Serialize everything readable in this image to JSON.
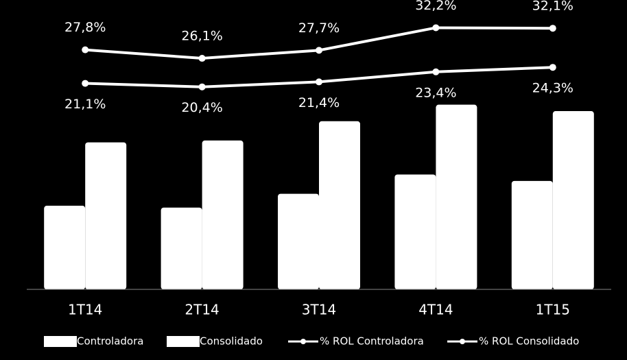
{
  "chart_data": {
    "type": "bar",
    "categories": [
      "1T14",
      "2T14",
      "3T14",
      "4T14",
      "1T15"
    ],
    "series": [
      {
        "name": "Controladora",
        "type": "bar",
        "color": "#ffffff",
        "values": [
          91,
          89,
          104,
          125,
          118
        ]
      },
      {
        "name": "Consolidado",
        "type": "bar",
        "color": "#ffffff",
        "values": [
          160,
          162,
          183,
          201,
          194
        ]
      },
      {
        "name": "% ROL Controladora",
        "type": "line",
        "axis": "y2",
        "color": "#ffffff",
        "values": [
          27.8,
          26.1,
          27.7,
          32.2,
          32.1
        ],
        "value_labels": [
          "27,8%",
          "26,1%",
          "27,7%",
          "32,2%",
          "32,1%"
        ]
      },
      {
        "name": "% ROL Consolidado",
        "type": "line",
        "axis": "y2",
        "color": "#ffffff",
        "values": [
          21.1,
          20.4,
          21.4,
          23.4,
          24.3
        ],
        "value_labels": [
          "21,1%",
          "20,4%",
          "21,4%",
          "23,4%",
          "24,3%"
        ]
      }
    ],
    "ylim": [
      0,
      300
    ],
    "y2lim": [
      -20,
      35
    ],
    "legend": "bottom"
  }
}
